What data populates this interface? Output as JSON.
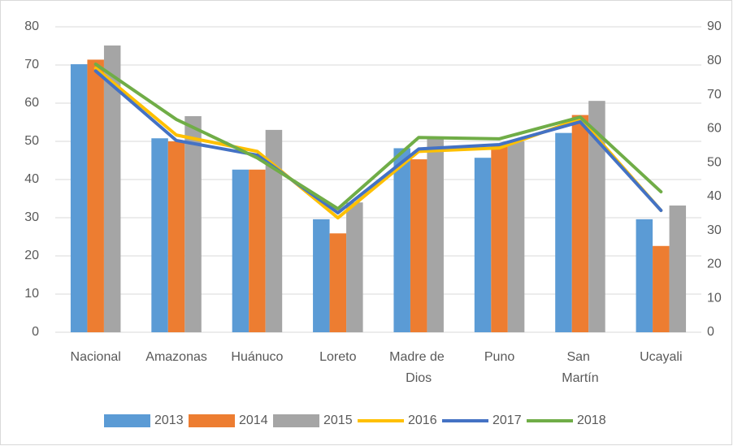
{
  "chart_data": {
    "type": "bar",
    "categories": [
      "Nacional",
      "Amazonas",
      "Huánuco",
      "Loreto",
      "Madre de Dios",
      "Puno",
      "San Martín",
      "Ucayali"
    ],
    "series": [
      {
        "name": "2013",
        "color": "#5b9bd5",
        "values": [
          70.2,
          50.8,
          42.6,
          29.6,
          48.2,
          45.7,
          52.2,
          29.6
        ]
      },
      {
        "name": "2014",
        "color": "#ed7d31",
        "values": [
          71.4,
          50,
          42.6,
          25.9,
          45.3,
          49,
          56.9,
          22.6
        ]
      },
      {
        "name": "2015",
        "color": "#a5a5a5",
        "values": [
          75.1,
          56.6,
          53,
          34,
          51,
          50,
          60.6,
          33.2
        ]
      },
      {
        "name": "2016",
        "color": "#ffc000",
        "type": "line",
        "axis": "y2",
        "values": [
          77.8,
          58.1,
          53.3,
          33.7,
          53.3,
          54.3,
          62.9,
          35.9
        ]
      },
      {
        "name": "2017",
        "color": "#4472c4",
        "type": "line",
        "axis": "y2",
        "values": [
          77,
          56.5,
          52.2,
          35.2,
          54,
          55.3,
          62,
          35.9
        ]
      },
      {
        "name": "2018",
        "color": "#70ad47",
        "type": "line",
        "axis": "y2",
        "values": [
          79,
          62.7,
          51.4,
          36.4,
          57.4,
          57,
          63.4,
          41.4
        ]
      }
    ],
    "ylim": [
      0,
      80
    ],
    "yticks": [
      0,
      10,
      20,
      30,
      40,
      50,
      60,
      70,
      80
    ],
    "y2lim": [
      0,
      90
    ],
    "y2ticks": [
      0,
      10,
      20,
      30,
      40,
      50,
      60,
      70,
      80,
      90
    ],
    "grid": true,
    "legend": "bottom"
  }
}
